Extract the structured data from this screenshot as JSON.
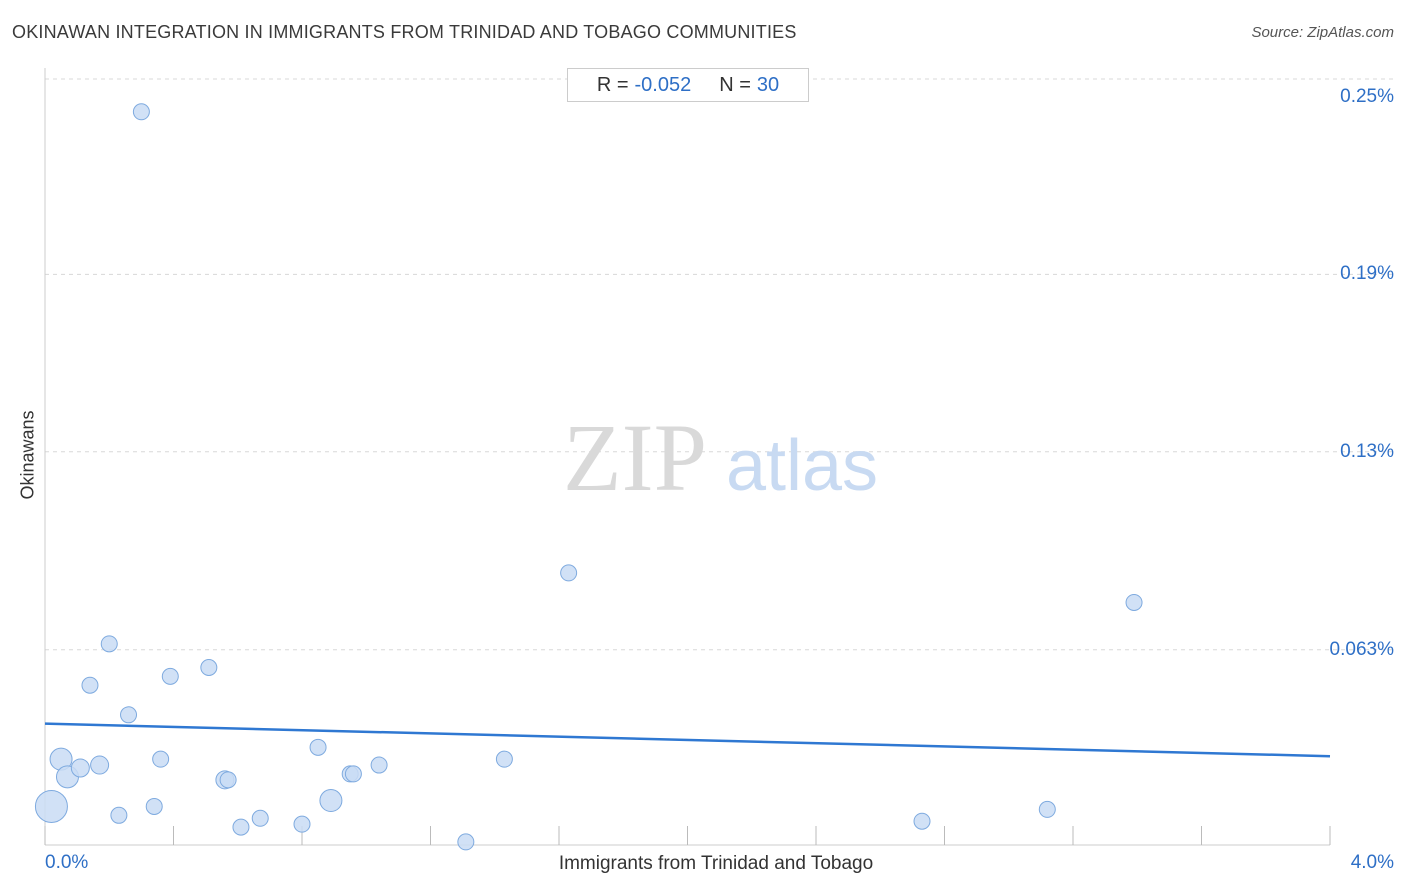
{
  "header": {
    "title": "OKINAWAN INTEGRATION IN IMMIGRANTS FROM TRINIDAD AND TOBAGO COMMUNITIES",
    "source": "Source: ZipAtlas.com"
  },
  "stats": {
    "r_label": "R =",
    "r_value": "-0.052",
    "n_label": "N =",
    "n_value": "30"
  },
  "watermark": {
    "zip": "ZIP",
    "atlas": "atlas"
  },
  "colors": {
    "point_fill": "#c9dcf4",
    "point_stroke": "#7eaadf",
    "trend_line": "#2f78d2",
    "tick_text": "#2e6fc6",
    "grid": "#d8d8d8"
  },
  "chart_data": {
    "type": "scatter",
    "xlabel": "Immigrants from Trinidad and Tobago",
    "ylabel": "Okinawans",
    "xlim": [
      0,
      4.0
    ],
    "ylim": [
      0,
      0.25
    ],
    "x_tick_labels": [
      "0.0%",
      "4.0%"
    ],
    "y_ticks": [
      0.25,
      0.19,
      0.13,
      0.063
    ],
    "y_tick_labels": [
      "0.25%",
      "0.19%",
      "0.13%",
      "0.063%"
    ],
    "grid": true,
    "trend": {
      "x": [
        0,
        4.0
      ],
      "y": [
        0.038,
        0.027
      ]
    },
    "points": [
      {
        "x": 0.02,
        "y": 0.01,
        "size": 16
      },
      {
        "x": 0.05,
        "y": 0.026,
        "size": 11
      },
      {
        "x": 0.07,
        "y": 0.02,
        "size": 11
      },
      {
        "x": 0.11,
        "y": 0.023,
        "size": 9
      },
      {
        "x": 0.14,
        "y": 0.051,
        "size": 8
      },
      {
        "x": 0.17,
        "y": 0.024,
        "size": 9
      },
      {
        "x": 0.2,
        "y": 0.065,
        "size": 8
      },
      {
        "x": 0.23,
        "y": 0.007,
        "size": 8
      },
      {
        "x": 0.26,
        "y": 0.041,
        "size": 8
      },
      {
        "x": 0.3,
        "y": 0.245,
        "size": 8
      },
      {
        "x": 0.34,
        "y": 0.01,
        "size": 8
      },
      {
        "x": 0.36,
        "y": 0.026,
        "size": 8
      },
      {
        "x": 0.39,
        "y": 0.054,
        "size": 8
      },
      {
        "x": 0.51,
        "y": 0.057,
        "size": 8
      },
      {
        "x": 0.56,
        "y": 0.019,
        "size": 9
      },
      {
        "x": 0.57,
        "y": 0.019,
        "size": 8
      },
      {
        "x": 0.61,
        "y": 0.003,
        "size": 8
      },
      {
        "x": 0.67,
        "y": 0.006,
        "size": 8
      },
      {
        "x": 0.8,
        "y": 0.004,
        "size": 8
      },
      {
        "x": 0.85,
        "y": 0.03,
        "size": 8
      },
      {
        "x": 0.89,
        "y": 0.012,
        "size": 11
      },
      {
        "x": 0.95,
        "y": 0.021,
        "size": 8
      },
      {
        "x": 0.96,
        "y": 0.021,
        "size": 8
      },
      {
        "x": 1.04,
        "y": 0.024,
        "size": 8
      },
      {
        "x": 1.31,
        "y": -0.002,
        "size": 8
      },
      {
        "x": 1.43,
        "y": 0.026,
        "size": 8
      },
      {
        "x": 1.63,
        "y": 0.089,
        "size": 8
      },
      {
        "x": 2.73,
        "y": 0.005,
        "size": 8
      },
      {
        "x": 3.12,
        "y": 0.009,
        "size": 8
      },
      {
        "x": 3.39,
        "y": 0.079,
        "size": 8
      }
    ]
  }
}
